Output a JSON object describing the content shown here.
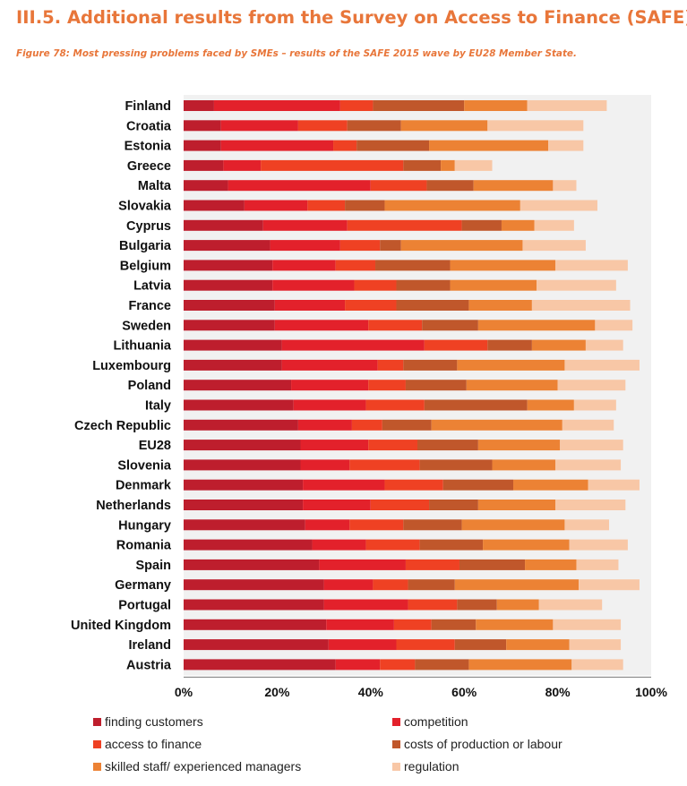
{
  "heading": "III.5.  Additional results from the Survey on Access to Finance (SAFE)",
  "caption": "Figure 78: Most pressing problems faced by SMEs – results of the SAFE 2015 wave by EU28 Member State.",
  "chart_data": {
    "type": "bar",
    "orientation": "horizontal",
    "stacked": true,
    "title": "",
    "xlabel": "",
    "ylabel": "",
    "xlim": [
      0,
      100
    ],
    "x_ticks": [
      "0%",
      "20%",
      "40%",
      "60%",
      "80%",
      "100%"
    ],
    "grid": false,
    "legend_position": "bottom",
    "categories": [
      "Finland",
      "Croatia",
      "Estonia",
      "Greece",
      "Malta",
      "Slovakia",
      "Cyprus",
      "Bulgaria",
      "Belgium",
      "Latvia",
      "France",
      "Sweden",
      "Lithuania",
      "Luxembourg",
      "Poland",
      "Italy",
      "Czech Republic",
      "EU28",
      "Slovenia",
      "Denmark",
      "Netherlands",
      "Hungary",
      "Romania",
      "Spain",
      "Germany",
      "Portugal",
      "United Kingdom",
      "Ireland",
      "Austria"
    ],
    "series": [
      {
        "name": "finding customers",
        "color": "#be1e2d",
        "values": [
          6.5,
          8,
          8,
          8.5,
          9.5,
          13,
          17,
          18.5,
          19,
          19,
          19.5,
          19.5,
          21,
          21,
          23,
          23.5,
          24.5,
          25,
          25,
          25.5,
          25.5,
          26,
          27.5,
          29,
          30,
          30,
          30.5,
          31,
          32.5
        ]
      },
      {
        "name": "competition",
        "color": "#e3212b",
        "values": [
          27,
          16.5,
          24,
          8,
          30.5,
          13.5,
          18,
          15,
          13.5,
          17.5,
          15,
          20,
          30.5,
          20.5,
          16.5,
          15.5,
          11.5,
          14.5,
          10.5,
          17.5,
          14.5,
          9.5,
          11.5,
          18.5,
          10.5,
          18,
          14.5,
          14.5,
          9.5
        ]
      },
      {
        "name": "access to finance",
        "color": "#ef4123",
        "values": [
          7,
          10.5,
          5,
          30.5,
          12,
          8,
          24.5,
          8.5,
          8.5,
          9,
          11,
          11.5,
          13.5,
          5.5,
          8,
          12.5,
          6.5,
          10.5,
          15,
          12.5,
          12.5,
          11.5,
          11.5,
          11.5,
          7.5,
          10.5,
          8,
          12.5,
          7.5
        ]
      },
      {
        "name": "costs of production or labour",
        "color": "#c0572b",
        "values": [
          19.5,
          11.5,
          15.5,
          8,
          10,
          8.5,
          8.5,
          4.5,
          16,
          11.5,
          15.5,
          12,
          9.5,
          11.5,
          13,
          22,
          10.5,
          13,
          15.5,
          15,
          10.5,
          12.5,
          13.5,
          14,
          10,
          8.5,
          9.5,
          11,
          11.5
        ]
      },
      {
        "name": "skilled staff/ experienced managers",
        "color": "#ec8234",
        "values": [
          13.5,
          18.5,
          25.5,
          3,
          17,
          29,
          7,
          26,
          22.5,
          18.5,
          13.5,
          25,
          11.5,
          23,
          19.5,
          10,
          28,
          17.5,
          13.5,
          16,
          16.5,
          22,
          18.5,
          11,
          26.5,
          9,
          16.5,
          13.5,
          22
        ]
      },
      {
        "name": "regulation",
        "color": "#f8c7a6",
        "values": [
          17,
          20.5,
          7.5,
          8,
          5,
          16.5,
          8.5,
          13.5,
          15.5,
          17,
          21,
          8,
          8,
          16,
          14.5,
          9,
          11,
          13.5,
          14,
          11,
          15,
          9.5,
          12.5,
          9,
          13,
          13.5,
          14.5,
          11,
          11
        ]
      }
    ]
  }
}
